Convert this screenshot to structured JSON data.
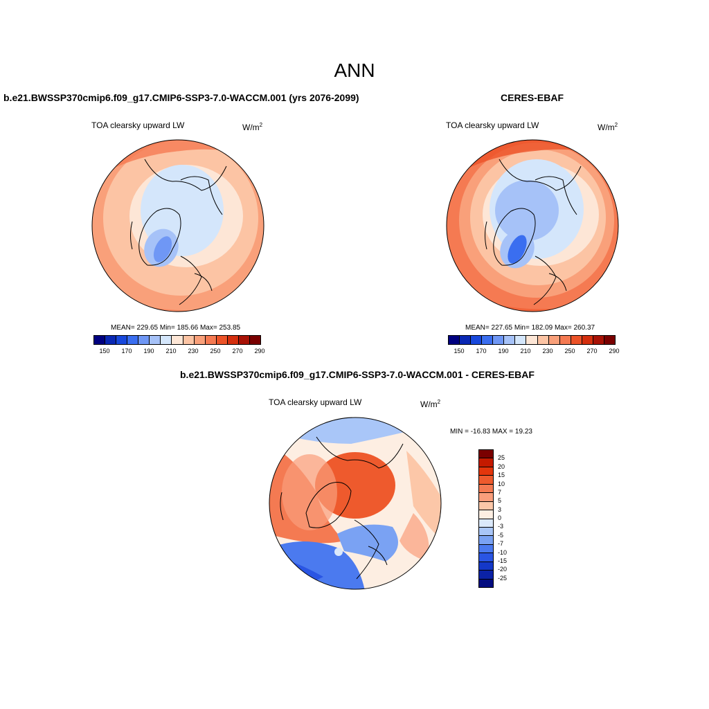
{
  "main_title": "ANN",
  "panels": {
    "model": {
      "title": "b.e21.BWSSP370cmip6.f09_g17.CMIP6-SSP3-7.0-WACCM.001 (yrs 2076-2099)",
      "variable": "TOA clearsky upward LW",
      "units_base": "W/m",
      "units_exp": "2",
      "stats": "MEAN= 229.65  Min= 185.66  Max= 253.85"
    },
    "obs": {
      "title": "CERES-EBAF",
      "variable": "TOA clearsky upward LW",
      "units_base": "W/m",
      "units_exp": "2",
      "stats": "MEAN= 227.65  Min= 182.09  Max= 260.37"
    },
    "diff": {
      "title": "b.e21.BWSSP370cmip6.f09_g17.CMIP6-SSP3-7.0-WACCM.001 - CERES-EBAF",
      "variable": "TOA clearsky upward LW",
      "units_base": "W/m",
      "units_exp": "2",
      "stats": "MIN = -16.83 MAX =  19.23"
    }
  },
  "colorbar_abs": {
    "colors": [
      "#000080",
      "#0a28b4",
      "#1848dc",
      "#3a6ef0",
      "#6f97f5",
      "#a6c2f8",
      "#d4e6fb",
      "#fde6d6",
      "#fcc4a4",
      "#f9a07a",
      "#f57a52",
      "#ec5328",
      "#d42f0e",
      "#a81206",
      "#7a0000"
    ],
    "tick_labels": [
      "150",
      "170",
      "190",
      "210",
      "230",
      "250",
      "270",
      "290"
    ]
  },
  "colorbar_diff": {
    "colors": [
      "#7a0000",
      "#c41a00",
      "#e3360c",
      "#ee5a2d",
      "#f47a52",
      "#f99e7c",
      "#fcc7a8",
      "#fdeee2",
      "#dbe9fb",
      "#a9c6f8",
      "#7aa2f3",
      "#4b7aef",
      "#2a55e3",
      "#1438c8",
      "#0b22a6",
      "#030c80"
    ],
    "tick_labels": [
      "25",
      "20",
      "15",
      "10",
      "7",
      "5",
      "3",
      "0",
      "-3",
      "-5",
      "-7",
      "-10",
      "-15",
      "-20",
      "-25"
    ]
  },
  "chart_data": [
    {
      "type": "heatmap",
      "projection": "north polar stereographic",
      "title": "b.e21.BWSSP370cmip6.f09_g17.CMIP6-SSP3-7.0-WACCM.001 (yrs 2076-2099)",
      "variable": "TOA clearsky upward LW",
      "units": "W/m2",
      "mean": 229.65,
      "min": 185.66,
      "max": 253.85,
      "levels": [
        150,
        160,
        170,
        180,
        190,
        200,
        210,
        220,
        230,
        240,
        250,
        260,
        270,
        280,
        290
      ]
    },
    {
      "type": "heatmap",
      "projection": "north polar stereographic",
      "title": "CERES-EBAF",
      "variable": "TOA clearsky upward LW",
      "units": "W/m2",
      "mean": 227.65,
      "min": 182.09,
      "max": 260.37,
      "levels": [
        150,
        160,
        170,
        180,
        190,
        200,
        210,
        220,
        230,
        240,
        250,
        260,
        270,
        280,
        290
      ]
    },
    {
      "type": "heatmap",
      "projection": "north polar stereographic",
      "title": "b.e21.BWSSP370cmip6.f09_g17.CMIP6-SSP3-7.0-WACCM.001 - CERES-EBAF",
      "variable": "TOA clearsky upward LW",
      "units": "W/m2",
      "min": -16.83,
      "max": 19.23,
      "levels": [
        -25,
        -20,
        -15,
        -10,
        -7,
        -5,
        -3,
        0,
        3,
        5,
        7,
        10,
        15,
        20,
        25
      ]
    }
  ]
}
